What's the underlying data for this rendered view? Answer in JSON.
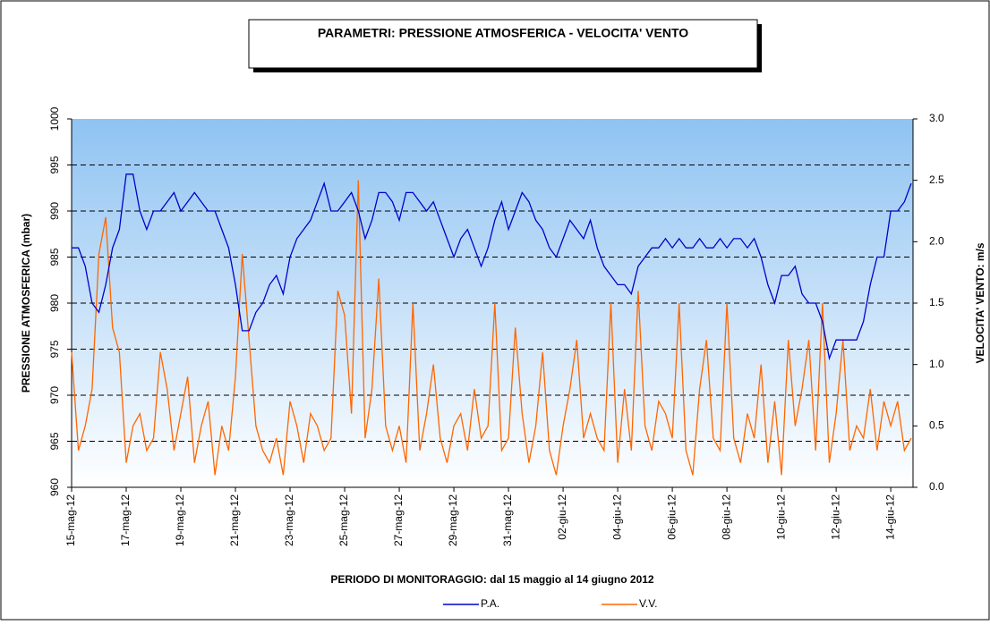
{
  "chart_data": {
    "type": "line",
    "title": "PARAMETRI: PRESSIONE ATMOSFERICA  -  VELOCITA' VENTO",
    "x_label": "PERIODO DI MONITORAGGIO: dal 15 maggio al 14 giugno 2012",
    "y_label": "PRESSIONE ATMOSFERICA (mbar)",
    "y2_label": "VELOCITA' VENTO: m/s",
    "categories": [
      "15-mag-12",
      null,
      null,
      null,
      null,
      null,
      null,
      null,
      "17-mag-12",
      null,
      null,
      null,
      null,
      null,
      null,
      null,
      "19-mag-12",
      null,
      null,
      null,
      null,
      null,
      null,
      null,
      "21-mag-12",
      null,
      null,
      null,
      null,
      null,
      null,
      null,
      "23-mag-12",
      null,
      null,
      null,
      null,
      null,
      null,
      null,
      "25-mag-12",
      null,
      null,
      null,
      null,
      null,
      null,
      null,
      "27-mag-12",
      null,
      null,
      null,
      null,
      null,
      null,
      null,
      "29-mag-12",
      null,
      null,
      null,
      null,
      null,
      null,
      null,
      "31-mag-12",
      null,
      null,
      null,
      null,
      null,
      null,
      null,
      "02-giu-12",
      null,
      null,
      null,
      null,
      null,
      null,
      null,
      "04-giu-12",
      null,
      null,
      null,
      null,
      null,
      null,
      null,
      "06-giu-12",
      null,
      null,
      null,
      null,
      null,
      null,
      null,
      "08-giu-12",
      null,
      null,
      null,
      null,
      null,
      null,
      null,
      "10-giu-12",
      null,
      null,
      null,
      null,
      null,
      null,
      null,
      "12-giu-12",
      null,
      null,
      null,
      null,
      null,
      null,
      null,
      "14-giu-12",
      null,
      null,
      null
    ],
    "series": [
      {
        "name": "P.A.",
        "color": "#0000cc",
        "axis": "y",
        "values": [
          986,
          986,
          984,
          980,
          979,
          982,
          986,
          988,
          994,
          994,
          990,
          988,
          990,
          990,
          991,
          992,
          990,
          991,
          992,
          991,
          990,
          990,
          988,
          986,
          982,
          977,
          977,
          979,
          980,
          982,
          983,
          981,
          985,
          987,
          988,
          989,
          991,
          993,
          990,
          990,
          991,
          992,
          990,
          987,
          989,
          992,
          992,
          991,
          989,
          992,
          992,
          991,
          990,
          991,
          989,
          987,
          985,
          987,
          988,
          986,
          984,
          986,
          989,
          991,
          988,
          990,
          992,
          991,
          989,
          988,
          986,
          985,
          987,
          989,
          988,
          987,
          989,
          986,
          984,
          983,
          982,
          982,
          981,
          984,
          985,
          986,
          986,
          987,
          986,
          987,
          986,
          986,
          987,
          986,
          986,
          987,
          986,
          987,
          987,
          986,
          987,
          985,
          982,
          980,
          983,
          983,
          984,
          981,
          980,
          980,
          978,
          974,
          976,
          976,
          976,
          976,
          978,
          982,
          985,
          985,
          990,
          990,
          991,
          993
        ]
      },
      {
        "name": "V.V.",
        "color": "#ff6600",
        "axis": "y2",
        "values": [
          1.1,
          0.3,
          0.5,
          0.8,
          1.9,
          2.2,
          1.3,
          1.1,
          0.2,
          0.5,
          0.6,
          0.3,
          0.4,
          1.1,
          0.8,
          0.3,
          0.6,
          0.9,
          0.2,
          0.5,
          0.7,
          0.1,
          0.5,
          0.3,
          0.9,
          1.9,
          1.2,
          0.5,
          0.3,
          0.2,
          0.4,
          0.1,
          0.7,
          0.5,
          0.2,
          0.6,
          0.5,
          0.3,
          0.4,
          1.6,
          1.4,
          0.6,
          2.5,
          0.4,
          0.8,
          1.7,
          0.5,
          0.3,
          0.5,
          0.2,
          1.5,
          0.3,
          0.6,
          1.0,
          0.4,
          0.2,
          0.5,
          0.6,
          0.3,
          0.8,
          0.4,
          0.5,
          1.5,
          0.3,
          0.4,
          1.3,
          0.6,
          0.2,
          0.5,
          1.1,
          0.3,
          0.1,
          0.5,
          0.8,
          1.2,
          0.4,
          0.6,
          0.4,
          0.3,
          1.5,
          0.2,
          0.8,
          0.3,
          1.6,
          0.5,
          0.3,
          0.7,
          0.6,
          0.4,
          1.5,
          0.3,
          0.1,
          0.8,
          1.2,
          0.4,
          0.3,
          1.5,
          0.4,
          0.2,
          0.6,
          0.4,
          1.0,
          0.2,
          0.7,
          0.1,
          1.2,
          0.5,
          0.8,
          1.2,
          0.3,
          1.5,
          0.2,
          0.6,
          1.2,
          0.3,
          0.5,
          0.4,
          0.8,
          0.3,
          0.7,
          0.5,
          0.7,
          0.3,
          0.4
        ]
      }
    ],
    "ylim": [
      960,
      1000
    ],
    "yticks": [
      960,
      965,
      970,
      975,
      980,
      985,
      990,
      995,
      1000
    ],
    "y2lim": [
      0,
      3
    ],
    "y2ticks": [
      {
        "value": 0,
        "label": "0.0"
      },
      0.5,
      {
        "value": 1,
        "label": "1.0"
      },
      1.5,
      {
        "value": 2,
        "label": "2.0"
      },
      2.5,
      {
        "value": 3,
        "label": "3.0"
      }
    ],
    "grid": true,
    "legend": "bottom"
  }
}
